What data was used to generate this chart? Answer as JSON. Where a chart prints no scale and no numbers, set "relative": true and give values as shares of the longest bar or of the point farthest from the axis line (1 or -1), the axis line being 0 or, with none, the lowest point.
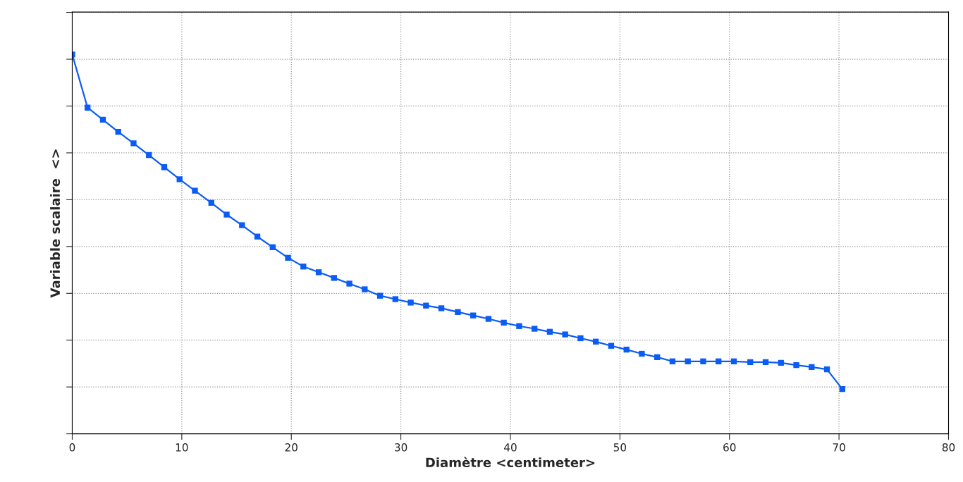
{
  "chart_data": {
    "type": "line",
    "xlabel": "Diamètre <centimeter>",
    "ylabel": "Variable scalaire  <>",
    "relative": true,
    "tick_labels": "x",
    "grid": true,
    "marker": "square",
    "line_style": "solid",
    "xlim": [
      0,
      80
    ],
    "xticks": [
      0,
      10,
      20,
      30,
      40,
      50,
      60,
      70,
      80
    ],
    "x": [
      0,
      1.4,
      2.8,
      4.2,
      5.6,
      7.0,
      8.4,
      9.8,
      11.2,
      12.7,
      14.1,
      15.5,
      16.9,
      18.3,
      19.7,
      21.1,
      22.5,
      23.9,
      25.3,
      26.7,
      28.1,
      29.5,
      30.9,
      32.3,
      33.7,
      35.2,
      36.6,
      38.0,
      39.4,
      40.8,
      42.2,
      43.6,
      45.0,
      46.4,
      47.8,
      49.2,
      50.6,
      52.0,
      53.4,
      54.8,
      56.2,
      57.6,
      59.0,
      60.4,
      61.9,
      63.3,
      64.7,
      66.1,
      67.5,
      68.9,
      70.3
    ],
    "series": [
      {
        "color": "#0a5cf5",
        "values": [
          1.0,
          0.86,
          0.828,
          0.796,
          0.766,
          0.735,
          0.703,
          0.671,
          0.641,
          0.609,
          0.578,
          0.55,
          0.52,
          0.492,
          0.464,
          0.441,
          0.426,
          0.411,
          0.396,
          0.381,
          0.364,
          0.355,
          0.346,
          0.338,
          0.331,
          0.321,
          0.312,
          0.303,
          0.293,
          0.284,
          0.277,
          0.269,
          0.262,
          0.252,
          0.243,
          0.232,
          0.222,
          0.211,
          0.202,
          0.191,
          0.191,
          0.191,
          0.191,
          0.191,
          0.189,
          0.189,
          0.187,
          0.181,
          0.176,
          0.17,
          0.118
        ]
      }
    ]
  }
}
